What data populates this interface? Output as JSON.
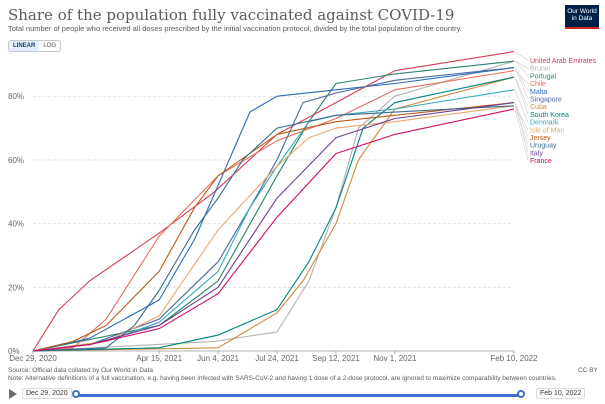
{
  "header": {
    "title": "Share of the population fully vaccinated against COVID-19",
    "subtitle": "Total number of people who received all doses prescribed by the initial vaccination protocol, divided by the total population of the country.",
    "logo_line1": "Our World",
    "logo_line2": "in Data"
  },
  "controls": {
    "linear_label": "LINEAR",
    "log_label": "LOG"
  },
  "footer": {
    "source": "Source: Official data collated by Our World in Data",
    "note": "Note: Alternative definitions of a full vaccination, e.g. having been infected with SARS-CoV-2 and having 1 dose of a 2-dose protocol, are ignored to maximize comparability between countries.",
    "license": "CC BY"
  },
  "timeline": {
    "start_label": "Dec 29, 2020",
    "end_label": "Feb 10, 2022"
  },
  "colors": {
    "accent": "#3b71c9",
    "grid": "#dddddd",
    "text": "#5b5b5b"
  },
  "chart_data": {
    "type": "line",
    "xlabel": "",
    "ylabel": "",
    "x_ticks": [
      "Dec 29, 2020",
      "Apr 15, 2021",
      "Jun 4, 2021",
      "Jul 24, 2021",
      "Sep 12, 2021",
      "Nov 1, 2021",
      "Feb 10, 2022"
    ],
    "y_ticks": [
      "0%",
      "20%",
      "40%",
      "60%",
      "80%"
    ],
    "xlim": [
      "2020-12-29",
      "2022-02-10"
    ],
    "ylim": [
      0,
      92
    ],
    "grid": true,
    "legend": "right",
    "series": [
      {
        "name": "United Arab Emirates",
        "color": "#d73c50",
        "points": [
          [
            "2020-12-29",
            0
          ],
          [
            "2021-01-20",
            13
          ],
          [
            "2021-02-15",
            22
          ],
          [
            "2021-04-15",
            37
          ],
          [
            "2021-06-01",
            50
          ],
          [
            "2021-07-24",
            68
          ],
          [
            "2021-09-12",
            78
          ],
          [
            "2021-11-01",
            88
          ],
          [
            "2022-02-10",
            94
          ]
        ]
      },
      {
        "name": "Brunei",
        "color": "#b3b3b3",
        "points": [
          [
            "2020-12-29",
            0
          ],
          [
            "2021-06-01",
            3
          ],
          [
            "2021-07-24",
            6
          ],
          [
            "2021-08-20",
            22
          ],
          [
            "2021-09-12",
            45
          ],
          [
            "2021-10-01",
            70
          ],
          [
            "2021-11-01",
            80
          ],
          [
            "2022-02-10",
            91
          ]
        ]
      },
      {
        "name": "Portugal",
        "color": "#2c8465",
        "points": [
          [
            "2020-12-29",
            0
          ],
          [
            "2021-04-15",
            8
          ],
          [
            "2021-06-04",
            22
          ],
          [
            "2021-07-24",
            55
          ],
          [
            "2021-08-20",
            72
          ],
          [
            "2021-09-12",
            84
          ],
          [
            "2021-11-01",
            87
          ],
          [
            "2022-02-10",
            91
          ]
        ]
      },
      {
        "name": "Chile",
        "color": "#e56e5a",
        "points": [
          [
            "2020-12-29",
            0
          ],
          [
            "2021-02-01",
            1
          ],
          [
            "2021-03-01",
            10
          ],
          [
            "2021-04-15",
            36
          ],
          [
            "2021-06-04",
            55
          ],
          [
            "2021-07-24",
            66
          ],
          [
            "2021-09-12",
            73
          ],
          [
            "2021-11-01",
            82
          ],
          [
            "2022-02-10",
            88
          ]
        ]
      },
      {
        "name": "Malta",
        "color": "#286bbb",
        "points": [
          [
            "2020-12-29",
            0
          ],
          [
            "2021-02-15",
            4
          ],
          [
            "2021-04-15",
            16
          ],
          [
            "2021-05-15",
            35
          ],
          [
            "2021-06-04",
            52
          ],
          [
            "2021-07-01",
            75
          ],
          [
            "2021-07-24",
            80
          ],
          [
            "2021-09-12",
            82
          ],
          [
            "2021-11-01",
            84
          ],
          [
            "2022-02-10",
            89
          ]
        ]
      },
      {
        "name": "Singapore",
        "color": "#4c6a9c",
        "points": [
          [
            "2020-12-29",
            0
          ],
          [
            "2021-02-15",
            2
          ],
          [
            "2021-04-15",
            10
          ],
          [
            "2021-06-04",
            28
          ],
          [
            "2021-07-01",
            45
          ],
          [
            "2021-07-24",
            60
          ],
          [
            "2021-08-15",
            78
          ],
          [
            "2021-09-12",
            81
          ],
          [
            "2021-11-01",
            85
          ],
          [
            "2022-02-10",
            89
          ]
        ]
      },
      {
        "name": "Cuba",
        "color": "#d0883a",
        "points": [
          [
            "2020-12-29",
            0
          ],
          [
            "2021-06-04",
            1
          ],
          [
            "2021-07-24",
            12
          ],
          [
            "2021-08-15",
            22
          ],
          [
            "2021-09-12",
            40
          ],
          [
            "2021-10-01",
            60
          ],
          [
            "2021-11-01",
            76
          ],
          [
            "2022-02-10",
            86
          ]
        ]
      },
      {
        "name": "South Korea",
        "color": "#00847e",
        "points": [
          [
            "2020-12-29",
            0
          ],
          [
            "2021-04-15",
            1
          ],
          [
            "2021-06-04",
            5
          ],
          [
            "2021-07-24",
            13
          ],
          [
            "2021-08-20",
            28
          ],
          [
            "2021-09-12",
            45
          ],
          [
            "2021-10-05",
            70
          ],
          [
            "2021-11-01",
            78
          ],
          [
            "2022-02-10",
            86
          ]
        ]
      },
      {
        "name": "Denmark",
        "color": "#38aaba",
        "points": [
          [
            "2020-12-29",
            0
          ],
          [
            "2021-03-01",
            3
          ],
          [
            "2021-04-15",
            9
          ],
          [
            "2021-06-04",
            25
          ],
          [
            "2021-07-01",
            45
          ],
          [
            "2021-07-24",
            58
          ],
          [
            "2021-08-20",
            72
          ],
          [
            "2021-09-12",
            74
          ],
          [
            "2021-11-01",
            76
          ],
          [
            "2022-02-10",
            82
          ]
        ]
      },
      {
        "name": "Isle of Man",
        "color": "#e8a76f",
        "points": [
          [
            "2020-12-29",
            0
          ],
          [
            "2021-03-01",
            3
          ],
          [
            "2021-04-15",
            11
          ],
          [
            "2021-06-04",
            38
          ],
          [
            "2021-07-24",
            58
          ],
          [
            "2021-08-20",
            67
          ],
          [
            "2021-09-12",
            70
          ],
          [
            "2021-11-01",
            72
          ],
          [
            "2022-02-10",
            77
          ]
        ]
      },
      {
        "name": "Jersey",
        "color": "#be5915",
        "points": [
          [
            "2020-12-29",
            0
          ],
          [
            "2021-02-01",
            3
          ],
          [
            "2021-03-01",
            8
          ],
          [
            "2021-04-15",
            25
          ],
          [
            "2021-05-15",
            45
          ],
          [
            "2021-06-04",
            55
          ],
          [
            "2021-07-24",
            68
          ],
          [
            "2021-09-12",
            72
          ],
          [
            "2021-11-01",
            74
          ],
          [
            "2022-02-10",
            78
          ]
        ]
      },
      {
        "name": "Uruguay",
        "color": "#396c8e",
        "points": [
          [
            "2020-12-29",
            0
          ],
          [
            "2021-03-01",
            1
          ],
          [
            "2021-03-25",
            8
          ],
          [
            "2021-04-15",
            19
          ],
          [
            "2021-05-15",
            38
          ],
          [
            "2021-06-04",
            48
          ],
          [
            "2021-06-25",
            60
          ],
          [
            "2021-07-24",
            70
          ],
          [
            "2021-09-12",
            74
          ],
          [
            "2021-11-01",
            75
          ],
          [
            "2022-02-10",
            77
          ]
        ]
      },
      {
        "name": "Italy",
        "color": "#6d3e91",
        "points": [
          [
            "2020-12-29",
            0
          ],
          [
            "2021-02-15",
            2
          ],
          [
            "2021-04-15",
            8
          ],
          [
            "2021-06-04",
            20
          ],
          [
            "2021-07-24",
            48
          ],
          [
            "2021-09-12",
            67
          ],
          [
            "2021-11-01",
            73
          ],
          [
            "2022-02-10",
            78
          ]
        ]
      },
      {
        "name": "France",
        "color": "#cf0a66",
        "points": [
          [
            "2020-12-29",
            0
          ],
          [
            "2021-02-15",
            2
          ],
          [
            "2021-04-15",
            7
          ],
          [
            "2021-06-04",
            18
          ],
          [
            "2021-07-24",
            42
          ],
          [
            "2021-09-12",
            62
          ],
          [
            "2021-11-01",
            68
          ],
          [
            "2022-02-10",
            76
          ]
        ]
      }
    ]
  }
}
